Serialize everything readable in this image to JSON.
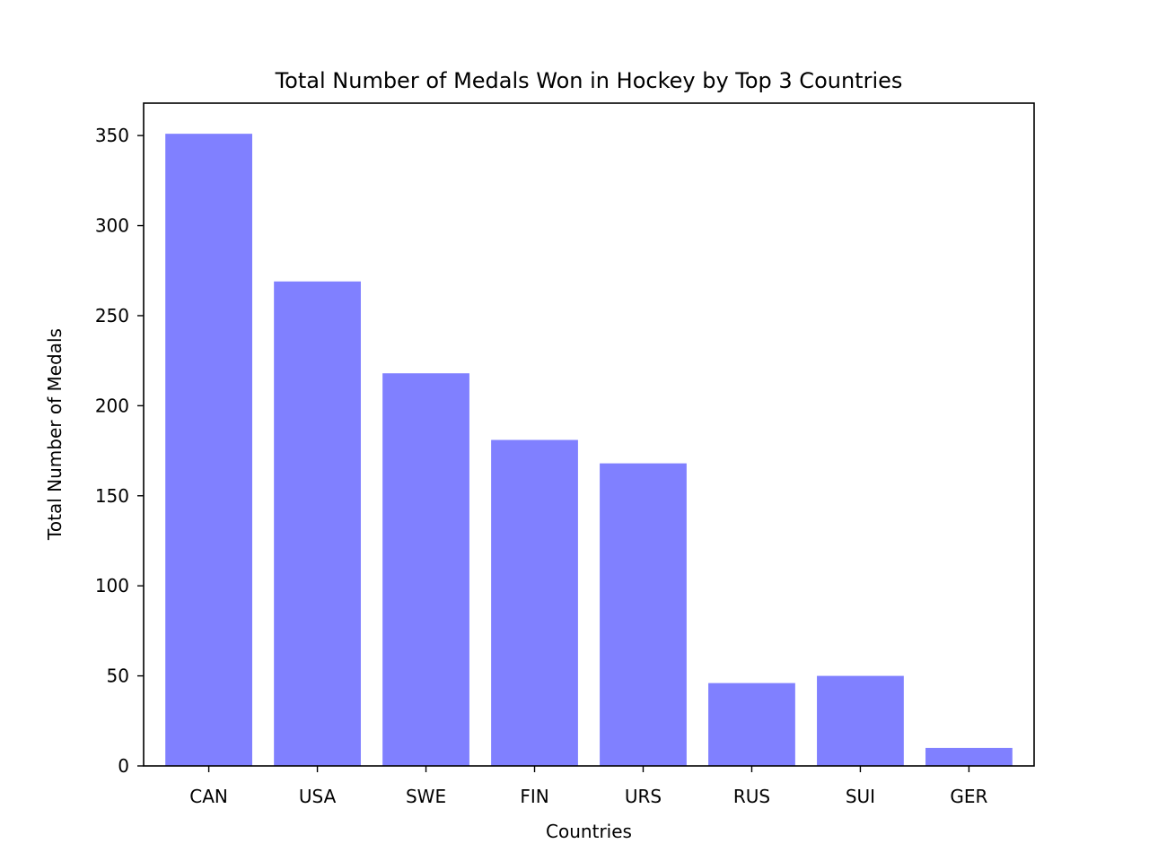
{
  "chart_data": {
    "type": "bar",
    "title": "Total Number of Medals Won in Hockey by Top 3 Countries",
    "xlabel": "Countries",
    "ylabel": "Total Number of Medals",
    "categories": [
      "CAN",
      "USA",
      "SWE",
      "FIN",
      "URS",
      "RUS",
      "SUI",
      "GER"
    ],
    "values": [
      351,
      269,
      218,
      181,
      168,
      46,
      50,
      10
    ],
    "ylim": [
      0,
      368
    ],
    "yticks": [
      0,
      50,
      100,
      150,
      200,
      250,
      300,
      350
    ],
    "bar_color": "#8080ff",
    "grid": false
  }
}
